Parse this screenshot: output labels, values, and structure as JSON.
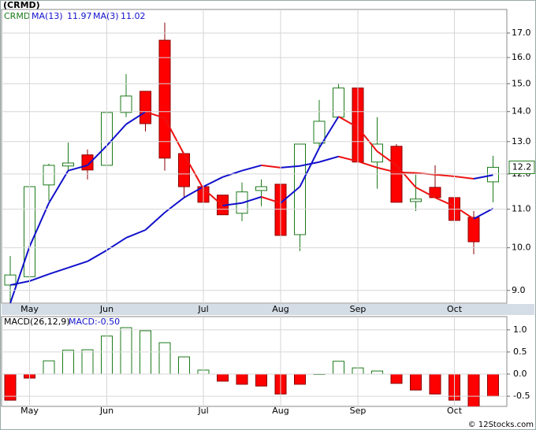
{
  "chart_data": [
    {
      "type": "candlestick",
      "title": "(CRMD)",
      "symbol": "CRMD",
      "log_scale": true,
      "grid": true,
      "categories": [
        null,
        "May",
        null,
        null,
        null,
        "Jun",
        null,
        null,
        null,
        null,
        "Jul",
        null,
        null,
        null,
        "Aug",
        null,
        null,
        null,
        "Sep",
        null,
        null,
        null,
        null,
        "Oct",
        null,
        null
      ],
      "open": [
        9.12,
        9.31,
        11.68,
        12.24,
        12.58,
        12.26,
        13.97,
        14.72,
        16.7,
        12.62,
        11.63,
        11.39,
        10.89,
        11.52,
        11.7,
        10.33,
        12.95,
        13.81,
        14.84,
        12.36,
        12.85,
        11.21,
        11.61,
        11.32,
        10.78,
        11.77
      ],
      "high": [
        9.8,
        12.29,
        12.31,
        12.97,
        12.75,
        13.97,
        15.36,
        14.72,
        17.44,
        12.62,
        11.79,
        11.39,
        11.75,
        11.84,
        11.7,
        12.92,
        14.41,
        15.01,
        14.84,
        13.81,
        12.92,
        11.98,
        12.26,
        11.32,
        10.95,
        12.55
      ],
      "low": [
        8.5,
        8.5,
        11.23,
        12.07,
        11.84,
        12.12,
        13.81,
        13.33,
        12.1,
        11.3,
        11.19,
        10.85,
        10.68,
        11.08,
        9.57,
        9.92,
        12.8,
        13.81,
        12.36,
        11.57,
        11.19,
        10.95,
        11.32,
        10.53,
        9.84,
        11.19
      ],
      "close": [
        9.35,
        11.63,
        12.26,
        12.33,
        12.12,
        13.97,
        14.55,
        13.59,
        12.48,
        11.63,
        11.19,
        10.85,
        11.48,
        11.63,
        10.31,
        12.92,
        13.67,
        14.84,
        12.36,
        12.92,
        11.19,
        11.28,
        11.32,
        10.7,
        10.15,
        12.2
      ],
      "up_color": "#ffffff",
      "down_color": "#ff0000",
      "up_edge": "#1b7a1b",
      "down_edge": "#8b0000",
      "series": [
        {
          "name": "MA(13)",
          "values": [
            9.12,
            9.21,
            9.37,
            9.52,
            9.67,
            9.94,
            10.25,
            10.45,
            10.91,
            11.32,
            11.63,
            11.91,
            12.1,
            12.26,
            12.19,
            12.24,
            12.36,
            12.53,
            12.38,
            12.19,
            12.05,
            12.03,
            11.98,
            11.93,
            11.86,
            11.97
          ]
        },
        {
          "name": "MA(3)",
          "values": [
            8.72,
            10.03,
            11.17,
            12.1,
            12.26,
            12.87,
            13.57,
            13.99,
            13.78,
            12.6,
            11.57,
            11.1,
            11.17,
            11.34,
            11.17,
            11.63,
            12.8,
            13.83,
            13.46,
            12.69,
            12.26,
            11.61,
            11.32,
            11.08,
            10.74,
            11.02
          ]
        }
      ],
      "ma_rising_color": "#1111cc",
      "ma_falling_color": "#ee1111",
      "ylim": [
        8.72,
        18.02
      ],
      "yticks": [
        {
          "value": 9,
          "label": "9.0"
        },
        {
          "value": 10,
          "label": "10.0"
        },
        {
          "value": 11,
          "label": "11.0"
        },
        {
          "value": 12,
          "label": "12.0"
        },
        {
          "value": 13,
          "label": "13.0"
        },
        {
          "value": 14,
          "label": "14.0"
        },
        {
          "value": 15,
          "label": "15.0"
        },
        {
          "value": 16,
          "label": "16.0"
        },
        {
          "value": 17,
          "label": "17.0"
        }
      ]
    },
    {
      "type": "bar",
      "title": "MACD(26,12,9)",
      "value_text": "MACD:-0.50",
      "grid": true,
      "values": [
        -0.59,
        -0.09,
        0.3,
        0.54,
        0.55,
        0.86,
        1.05,
        0.98,
        0.71,
        0.39,
        0.09,
        -0.16,
        -0.23,
        -0.27,
        -0.45,
        -0.23,
        0,
        0.29,
        0.14,
        0.07,
        -0.21,
        -0.36,
        -0.45,
        -0.59,
        -0.75,
        -0.5
      ],
      "up_color": "#ffffff",
      "down_color": "#ff0000",
      "up_edge": "#1b7a1b",
      "down_edge": "#8b0000",
      "ylim": [
        -0.73,
        1.3
      ],
      "yticks": [
        -0.5,
        {
          "value": 0,
          "label": "0.0"
        },
        0.5,
        {
          "value": 1,
          "label": "1.0"
        }
      ]
    }
  ],
  "copyright": "© 12Stocks.com"
}
